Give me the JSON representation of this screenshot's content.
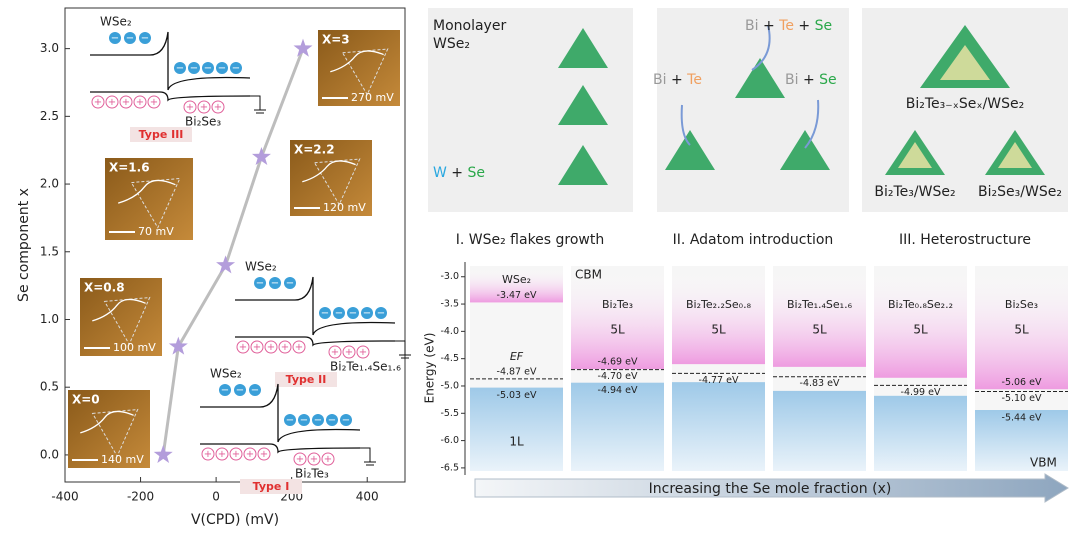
{
  "chart_data": [
    {
      "type": "scatter",
      "xlabel": "V(CPD) (mV)",
      "ylabel": "Se component x",
      "x": [
        -140,
        -100,
        25,
        120,
        230
      ],
      "values": [
        0,
        0.8,
        1.4,
        2.2,
        3.0
      ],
      "color": "#b39ddb",
      "line_color": "#bdbdbd",
      "xlim": [
        -400,
        500
      ],
      "xticks": [
        -400,
        -200,
        0,
        200,
        400
      ],
      "ylim": [
        -0.2,
        3.3
      ],
      "yticks": [
        {
          "value": 0,
          "label": "0.0"
        },
        {
          "value": 0.5,
          "label": "0.5"
        },
        {
          "value": 1,
          "label": "1.0"
        },
        {
          "value": 1.5,
          "label": "1.5"
        },
        {
          "value": 2,
          "label": "2.0"
        },
        {
          "value": 2.5,
          "label": "2.5"
        },
        {
          "value": 3,
          "label": "3.0"
        }
      ]
    },
    {
      "type": "band",
      "ylabel": "Energy (eV)",
      "xlabel": "Increasing the Se mole fraction (x)",
      "categories": [
        "WSe₂",
        "Bi₂Te₃",
        "Bi₂Te₂.₂Se₀.₈",
        "Bi₂Te₁.₄Se₁.₆",
        "Bi₂Te₀.₈Se₂.₂",
        "Bi₂Se₃"
      ],
      "layers": [
        "1L",
        "5L",
        "5L",
        "5L",
        "5L",
        "5L"
      ],
      "series": [
        {
          "name": "CBM",
          "color": "#ee9be0",
          "values": [
            -3.47,
            -4.69,
            -4.6,
            -4.65,
            -4.85,
            -5.06
          ],
          "value_labels": [
            "-3.47 eV",
            "-4.69 eV",
            null,
            null,
            null,
            "-5.06 eV"
          ]
        },
        {
          "name": "EF",
          "color": "#222222",
          "values": [
            -4.87,
            -4.7,
            -4.77,
            -4.83,
            -4.99,
            -5.1
          ],
          "value_labels": [
            "-4.87 eV",
            "-4.70 eV",
            "-4.77 eV",
            "-4.83 eV",
            "-4.99 eV",
            "-5.10 eV"
          ]
        },
        {
          "name": "VBM",
          "color": "#9ec9e8",
          "values": [
            -5.03,
            -4.94,
            -4.93,
            -5.09,
            -5.18,
            -5.44
          ],
          "value_labels": [
            "-5.03 eV",
            "-4.94 eV",
            null,
            null,
            null,
            "-5.44 eV"
          ]
        }
      ],
      "ylim": [
        -6.63,
        -2.73
      ],
      "yticks": [
        {
          "value": -3,
          "label": "-3.0"
        },
        {
          "value": -3.5,
          "label": "-3.5"
        },
        {
          "value": -4,
          "label": "-4.0"
        },
        {
          "value": -4.5,
          "label": "-4.5"
        },
        {
          "value": -5,
          "label": "-5.0"
        },
        {
          "value": -5.5,
          "label": "-5.5"
        },
        {
          "value": -6,
          "label": "-6.0"
        },
        {
          "value": -6.5,
          "label": "-6.5"
        }
      ]
    }
  ],
  "insets": [
    {
      "label": "X=3",
      "scale": "270 mV"
    },
    {
      "label": "X=2.2",
      "scale": "120 mV"
    },
    {
      "label": "X=1.6",
      "scale": "70 mV"
    },
    {
      "label": "X=0.8",
      "scale": "100 mV"
    },
    {
      "label": "X=0",
      "scale": "140 mV"
    }
  ],
  "schematics": [
    {
      "top": "WSe₂",
      "bottom": "Bi₂Se₃",
      "type": "Type III"
    },
    {
      "top": "WSe₂",
      "bottom": "Bi₂Te₁.₄Se₁.₆",
      "type": "Type II"
    },
    {
      "top": "WSe₂",
      "bottom": "Bi₂Te₃",
      "type": "Type I"
    }
  ],
  "stages": [
    {
      "caption": "I. WSe₂ flakes growth",
      "texts": [
        {
          "parts": [
            "Monolayer"
          ]
        },
        {
          "parts": [
            "WSe₂"
          ]
        },
        {
          "parts": [
            "W",
            "+",
            "Se"
          ]
        }
      ]
    },
    {
      "caption": "II. Adatom introduction",
      "texts": [
        {
          "parts": [
            "Bi",
            "+",
            "Te",
            "+",
            "Se"
          ]
        },
        {
          "parts": [
            "Bi",
            "+",
            "Te"
          ]
        },
        {
          "parts": [
            "Bi",
            "+",
            "Se"
          ]
        }
      ]
    },
    {
      "caption": "III. Heterostructure",
      "texts": [
        {
          "parts": [
            "Bi₂Te₃₋ₓSeₓ/WSe₂"
          ]
        },
        {
          "parts": [
            "Bi₂Te₃/WSe₂"
          ]
        },
        {
          "parts": [
            "Bi₂Se₃/WSe₂"
          ]
        }
      ]
    }
  ]
}
